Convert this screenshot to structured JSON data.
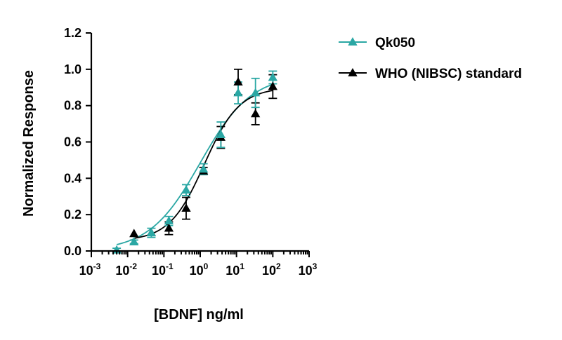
{
  "chart_data": {
    "type": "scatter",
    "title": "",
    "xlabel": "[BDNF] ng/ml",
    "ylabel": "Normalized Response",
    "xscale": "log10",
    "xlim": [
      0.001,
      1000
    ],
    "ylim": [
      0.0,
      1.2
    ],
    "yticks": [
      "0.0",
      "0.2",
      "0.4",
      "0.6",
      "0.8",
      "1.0",
      "1.2"
    ],
    "xticks": [
      {
        "base": "10",
        "exp": "-3"
      },
      {
        "base": "10",
        "exp": "-2"
      },
      {
        "base": "10",
        "exp": "-1"
      },
      {
        "base": "10",
        "exp": "0"
      },
      {
        "base": "10",
        "exp": "1"
      },
      {
        "base": "10",
        "exp": "2"
      },
      {
        "base": "10",
        "exp": "3"
      }
    ],
    "grid": false,
    "legend_position": "top-right",
    "series": [
      {
        "name": "Qk050",
        "color": "#2aa7a4",
        "marker": "triangle",
        "x": [
          0.005,
          0.015,
          0.045,
          0.137,
          0.41,
          1.23,
          3.7,
          11.1,
          33.3,
          100
        ],
        "y": [
          0.005,
          0.05,
          0.1,
          0.165,
          0.335,
          0.45,
          0.64,
          0.87,
          0.87,
          0.955
        ],
        "err": [
          0.01,
          0.01,
          0.025,
          0.025,
          0.03,
          0.03,
          0.07,
          0.06,
          0.08,
          0.035
        ],
        "fit_curve": {
          "bottom": 0.0,
          "top": 0.97,
          "ec50": 1.0,
          "hill": 0.62
        }
      },
      {
        "name": "WHO (NIBSC) standard",
        "color": "#000000",
        "marker": "triangle",
        "x": [
          0.015,
          0.045,
          0.137,
          0.41,
          1.23,
          3.7,
          11.1,
          33.3,
          100
        ],
        "y": [
          0.095,
          0.1,
          0.125,
          0.235,
          0.44,
          0.625,
          0.93,
          0.755,
          0.905
        ],
        "err": [
          0.0,
          0.0,
          0.035,
          0.06,
          0.02,
          0.06,
          0.07,
          0.06,
          0.065
        ],
        "fit_curve": {
          "bottom": 0.055,
          "top": 0.9,
          "ec50": 1.3,
          "hill": 0.9
        }
      }
    ]
  }
}
